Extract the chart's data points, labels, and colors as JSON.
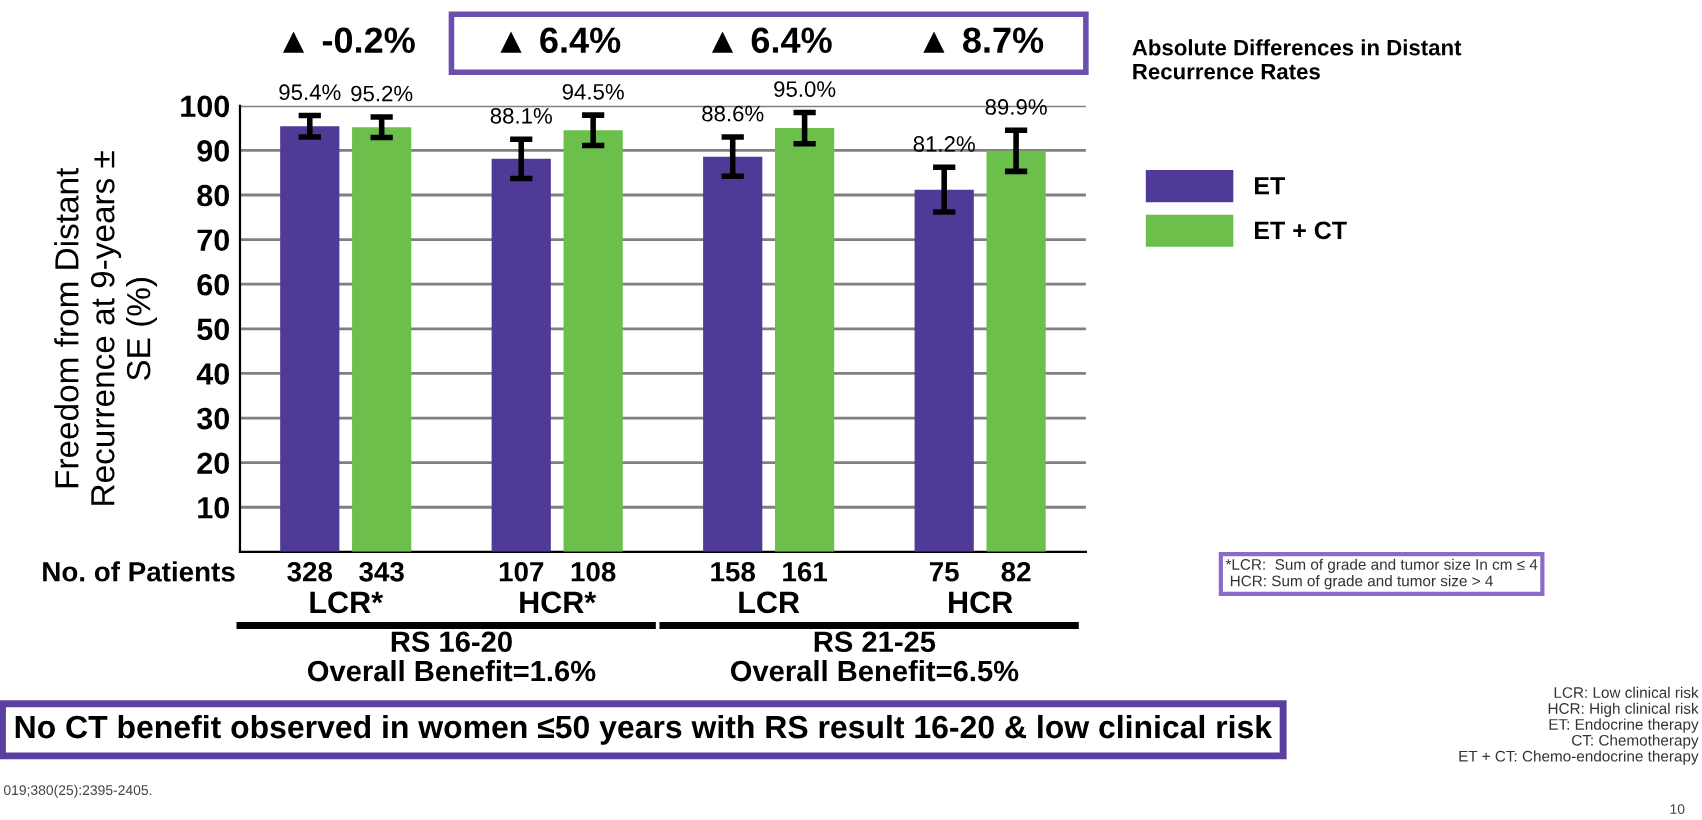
{
  "chart_data": {
    "type": "bar",
    "ylabel": "Freedom from Distant\nRecurrence at 9-years ±\nSE (%)",
    "categories": [
      "LCR*",
      "HCR*",
      "LCR",
      "HCR"
    ],
    "series": [
      {
        "name": "ET",
        "color": "#503a98",
        "values": [
          95.4,
          88.1,
          88.6,
          81.2
        ],
        "errors": [
          2.4,
          4.4,
          4.4,
          5.0
        ],
        "value_labels": [
          "95.4%",
          "88.1%",
          "88.6%",
          "81.2%"
        ]
      },
      {
        "name": "ET + CT",
        "color": "#6cbf4a",
        "values": [
          95.2,
          94.5,
          95.0,
          89.9
        ],
        "errors": [
          2.3,
          3.4,
          3.5,
          4.6
        ],
        "value_labels": [
          "95.2%",
          "94.5%",
          "95.0%",
          "89.9%"
        ]
      }
    ],
    "ylim": [
      0,
      100
    ],
    "yticks": [
      10,
      20,
      30,
      40,
      50,
      60,
      70,
      80,
      90,
      100
    ],
    "grid": "y",
    "legend": "right",
    "annotations": [
      "No. of Patients",
      "328",
      "343",
      "107",
      "108",
      "158",
      "161",
      "75",
      "82",
      "▲ -0.2%",
      "▲ 6.4%",
      "▲ 6.4%",
      "▲ 8.7%",
      "RS 16-20\nOverall Benefit=1.6%",
      "RS 21-25\nOverall Benefit=6.5%",
      "Absolute Differences in Distant\nRecurrence Rates",
      "*LCR:  Sum of grade and tumor size In cm ≤ 4\n HCR: Sum of grade and tumor size > 4",
      "No CT benefit observed in women ≤50 years with RS result 16-20 & low clinical risk",
      "019;380(25):2395-2405.",
      "LCR: Low clinical risk\nHCR: High clinical risk\nET: Endocrine therapy\nCT: Chemotherapy\nET + CT: Chemo-endocrine therapy",
      "10"
    ]
  }
}
